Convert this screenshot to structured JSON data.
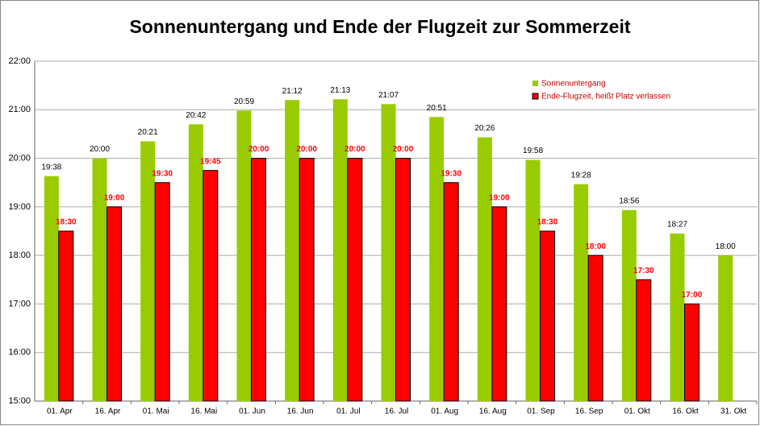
{
  "chart_data": {
    "type": "bar",
    "title": "Sonnenuntergang und Ende der Flugzeit zur Sommerzeit",
    "categories": [
      "01. Apr",
      "16. Apr",
      "01. Mai",
      "16. Mai",
      "01. Jun",
      "16. Jun",
      "01. Jul",
      "16. Jul",
      "01. Aug",
      "16. Aug",
      "01. Sep",
      "16. Sep",
      "01. Okt",
      "16. Okt",
      "31. Okt"
    ],
    "series": [
      {
        "name": "Sonnenuntergang",
        "color": "#99cc00",
        "values": [
          19.633333,
          20,
          20.35,
          20.7,
          20.983333,
          21.2,
          21.216667,
          21.116667,
          20.85,
          20.433333,
          19.966667,
          19.466667,
          18.933333,
          18.45,
          18
        ],
        "value_labels": [
          "19:38",
          "20:00",
          "20:21",
          "20:42",
          "20:59",
          "21:12",
          "21:13",
          "21:07",
          "20:51",
          "20:26",
          "19:58",
          "19:28",
          "18:56",
          "18:27",
          "18:00"
        ]
      },
      {
        "name": "Ende-Flugzeit, heißt Platz verlassen",
        "color": "#ff0000",
        "values": [
          18.5,
          19,
          19.5,
          19.75,
          20,
          20,
          20,
          20,
          19.5,
          19,
          18.5,
          18,
          17.5,
          17,
          null
        ],
        "value_labels": [
          "18:30",
          "19:00",
          "19:30",
          "19:45",
          "20:00",
          "20:00",
          "20:00",
          "20:00",
          "19:30",
          "19:00",
          "18:30",
          "18:00",
          "17:30",
          "17:00",
          null
        ]
      }
    ],
    "ylim": [
      15,
      22
    ],
    "yticks": [
      {
        "value": 15,
        "label": "15:00"
      },
      {
        "value": 16,
        "label": "16:00"
      },
      {
        "value": 17,
        "label": "17:00"
      },
      {
        "value": 18,
        "label": "18:00"
      },
      {
        "value": 19,
        "label": "19:00"
      },
      {
        "value": 20,
        "label": "20:00"
      },
      {
        "value": 21,
        "label": "21:00"
      },
      {
        "value": 22,
        "label": "22:00"
      }
    ],
    "grid": true,
    "legend": "upper right"
  }
}
